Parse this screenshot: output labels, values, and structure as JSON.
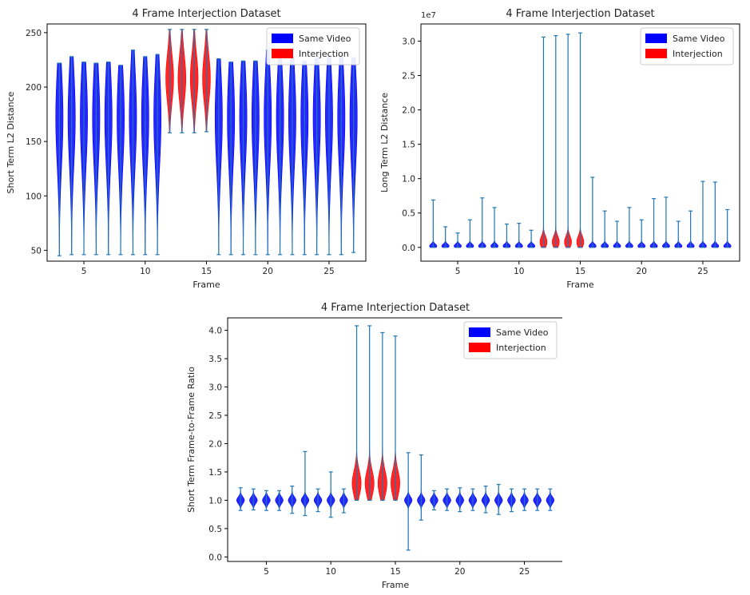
{
  "chart_data": [
    {
      "type": "violin",
      "title": "4 Frame Interjection Dataset",
      "xlabel": "Frame",
      "ylabel": "Short Term L2 Distance",
      "xlim": [
        2,
        28
      ],
      "ylim": [
        40,
        258
      ],
      "xticks": [
        5,
        10,
        15,
        20,
        25
      ],
      "yticks": [
        50,
        100,
        150,
        200,
        250
      ],
      "xtick_labels": [
        "5",
        "10",
        "15",
        "20",
        "25"
      ],
      "ytick_labels": [
        "50",
        "100",
        "150",
        "200",
        "250"
      ],
      "offset_label": "",
      "legend": [
        {
          "label": "Same Video",
          "color": "#0000ff"
        },
        {
          "label": "Interjection",
          "color": "#ff0000"
        }
      ],
      "series": [
        {
          "name": "Same Video",
          "color": "#0000ff",
          "frames": [
            3,
            4,
            5,
            6,
            7,
            8,
            9,
            10,
            11,
            16,
            17,
            18,
            19,
            20,
            21,
            22,
            23,
            24,
            25,
            26,
            27
          ],
          "min": [
            45,
            46,
            46,
            46,
            46,
            46,
            46,
            46,
            46,
            46,
            46,
            46,
            46,
            46,
            46,
            46,
            46,
            46,
            46,
            46,
            48
          ],
          "max": [
            222,
            228,
            223,
            222,
            223,
            220,
            234,
            228,
            230,
            226,
            223,
            224,
            224,
            234,
            231,
            227,
            224,
            227,
            228,
            228,
            227
          ],
          "center": [
            172,
            172,
            172,
            172,
            172,
            172,
            172,
            172,
            172,
            172,
            172,
            172,
            172,
            172,
            172,
            172,
            172,
            172,
            172,
            172,
            172
          ],
          "halfwidth": [
            0.3,
            0.3,
            0.3,
            0.3,
            0.3,
            0.3,
            0.3,
            0.3,
            0.3,
            0.3,
            0.3,
            0.3,
            0.3,
            0.3,
            0.3,
            0.3,
            0.3,
            0.3,
            0.3,
            0.3,
            0.3
          ],
          "spread": [
            45,
            45,
            45,
            45,
            45,
            45,
            45,
            45,
            45,
            45,
            45,
            45,
            45,
            45,
            45,
            45,
            45,
            45,
            45,
            45,
            45
          ]
        },
        {
          "name": "Interjection",
          "color": "#ff0000",
          "frames": [
            12,
            13,
            14,
            15
          ],
          "min": [
            158,
            158,
            158,
            159
          ],
          "max": [
            253,
            253,
            253,
            253
          ],
          "center": [
            208,
            208,
            208,
            208
          ],
          "halfwidth": [
            0.32,
            0.32,
            0.32,
            0.32
          ],
          "spread": [
            22,
            22,
            22,
            22
          ]
        }
      ]
    },
    {
      "type": "violin",
      "title": "4 Frame Interjection Dataset",
      "xlabel": "Frame",
      "ylabel": "Long Term L2 Distance",
      "xlim": [
        2,
        28
      ],
      "ylim": [
        -0.2,
        3.25
      ],
      "xticks": [
        5,
        10,
        15,
        20,
        25
      ],
      "yticks": [
        0.0,
        0.5,
        1.0,
        1.5,
        2.0,
        2.5,
        3.0
      ],
      "xtick_labels": [
        "5",
        "10",
        "15",
        "20",
        "25"
      ],
      "ytick_labels": [
        "0.0",
        "0.5",
        "1.0",
        "1.5",
        "2.0",
        "2.5",
        "3.0"
      ],
      "offset_label": "1e7",
      "legend": [
        {
          "label": "Same Video",
          "color": "#0000ff"
        },
        {
          "label": "Interjection",
          "color": "#ff0000"
        }
      ],
      "series": [
        {
          "name": "Same Video",
          "color": "#0000ff",
          "frames": [
            3,
            4,
            5,
            6,
            7,
            8,
            9,
            10,
            11,
            16,
            17,
            18,
            19,
            20,
            21,
            22,
            23,
            24,
            25,
            26,
            27
          ],
          "min": [
            0,
            0,
            0,
            0,
            0,
            0,
            0,
            0,
            0,
            0,
            0,
            0,
            0,
            0,
            0,
            0,
            0,
            0,
            0,
            0,
            0
          ],
          "max": [
            0.69,
            0.3,
            0.21,
            0.4,
            0.72,
            0.58,
            0.34,
            0.35,
            0.25,
            1.02,
            0.53,
            0.38,
            0.58,
            0.4,
            0.71,
            0.73,
            0.38,
            0.53,
            0.96,
            0.95,
            0.55
          ],
          "center": [
            0.02,
            0.02,
            0.02,
            0.02,
            0.02,
            0.02,
            0.02,
            0.02,
            0.02,
            0.02,
            0.02,
            0.02,
            0.02,
            0.02,
            0.02,
            0.02,
            0.02,
            0.02,
            0.02,
            0.02,
            0.02
          ],
          "halfwidth": [
            0.3,
            0.3,
            0.3,
            0.3,
            0.3,
            0.3,
            0.3,
            0.3,
            0.3,
            0.3,
            0.3,
            0.3,
            0.3,
            0.3,
            0.3,
            0.3,
            0.3,
            0.3,
            0.3,
            0.3,
            0.3
          ],
          "spread": [
            0.03,
            0.03,
            0.03,
            0.03,
            0.03,
            0.03,
            0.03,
            0.03,
            0.03,
            0.03,
            0.03,
            0.03,
            0.03,
            0.03,
            0.03,
            0.03,
            0.03,
            0.03,
            0.03,
            0.03,
            0.03
          ]
        },
        {
          "name": "Interjection",
          "color": "#ff0000",
          "frames": [
            12,
            13,
            14,
            15
          ],
          "min": [
            0,
            0,
            0,
            0
          ],
          "max": [
            3.06,
            3.08,
            3.1,
            3.12
          ],
          "center": [
            0.08,
            0.08,
            0.08,
            0.08
          ],
          "halfwidth": [
            0.3,
            0.3,
            0.3,
            0.3
          ],
          "spread": [
            0.08,
            0.08,
            0.08,
            0.08
          ]
        }
      ]
    },
    {
      "type": "violin",
      "title": "4 Frame Interjection Dataset",
      "xlabel": "Frame",
      "ylabel": "Short Term Frame-to-Frame Ratio",
      "xlim": [
        2,
        28
      ],
      "ylim": [
        -0.08,
        4.22
      ],
      "xticks": [
        5,
        10,
        15,
        20,
        25
      ],
      "yticks": [
        0.0,
        0.5,
        1.0,
        1.5,
        2.0,
        2.5,
        3.0,
        3.5,
        4.0
      ],
      "xtick_labels": [
        "5",
        "10",
        "15",
        "20",
        "25"
      ],
      "ytick_labels": [
        "0.0",
        "0.5",
        "1.0",
        "1.5",
        "2.0",
        "2.5",
        "3.0",
        "3.5",
        "4.0"
      ],
      "offset_label": "",
      "legend": [
        {
          "label": "Same Video",
          "color": "#0000ff"
        },
        {
          "label": "Interjection",
          "color": "#ff0000"
        }
      ],
      "series": [
        {
          "name": "Same Video",
          "color": "#0000ff",
          "frames": [
            3,
            4,
            5,
            6,
            7,
            8,
            9,
            10,
            11,
            16,
            17,
            18,
            19,
            20,
            21,
            22,
            23,
            24,
            25,
            26,
            27
          ],
          "min": [
            0.82,
            0.83,
            0.82,
            0.82,
            0.77,
            0.73,
            0.8,
            0.7,
            0.78,
            0.12,
            0.65,
            0.83,
            0.82,
            0.8,
            0.82,
            0.78,
            0.75,
            0.8,
            0.82,
            0.82,
            0.82
          ],
          "max": [
            1.22,
            1.2,
            1.17,
            1.17,
            1.25,
            1.86,
            1.2,
            1.5,
            1.2,
            1.84,
            1.8,
            1.17,
            1.2,
            1.22,
            1.2,
            1.25,
            1.28,
            1.2,
            1.2,
            1.2,
            1.2
          ],
          "center": [
            1.0,
            1.0,
            1.0,
            1.0,
            1.0,
            1.0,
            1.0,
            1.0,
            1.0,
            1.0,
            1.0,
            1.0,
            1.0,
            1.0,
            1.0,
            1.0,
            1.0,
            1.0,
            1.0,
            1.0,
            1.0
          ],
          "halfwidth": [
            0.3,
            0.3,
            0.3,
            0.3,
            0.3,
            0.3,
            0.3,
            0.3,
            0.3,
            0.3,
            0.3,
            0.3,
            0.3,
            0.3,
            0.3,
            0.3,
            0.3,
            0.3,
            0.3,
            0.3,
            0.3
          ],
          "spread": [
            0.06,
            0.06,
            0.06,
            0.06,
            0.06,
            0.06,
            0.06,
            0.06,
            0.06,
            0.06,
            0.06,
            0.06,
            0.06,
            0.06,
            0.06,
            0.06,
            0.06,
            0.06,
            0.06,
            0.06,
            0.06
          ]
        },
        {
          "name": "Interjection",
          "color": "#ff0000",
          "frames": [
            12,
            13,
            14,
            15
          ],
          "min": [
            1.0,
            1.0,
            1.0,
            1.0
          ],
          "max": [
            4.08,
            4.08,
            3.96,
            3.9
          ],
          "center": [
            1.3,
            1.3,
            1.3,
            1.3
          ],
          "halfwidth": [
            0.35,
            0.35,
            0.35,
            0.35
          ],
          "spread": [
            0.22,
            0.22,
            0.22,
            0.22
          ]
        }
      ]
    }
  ]
}
